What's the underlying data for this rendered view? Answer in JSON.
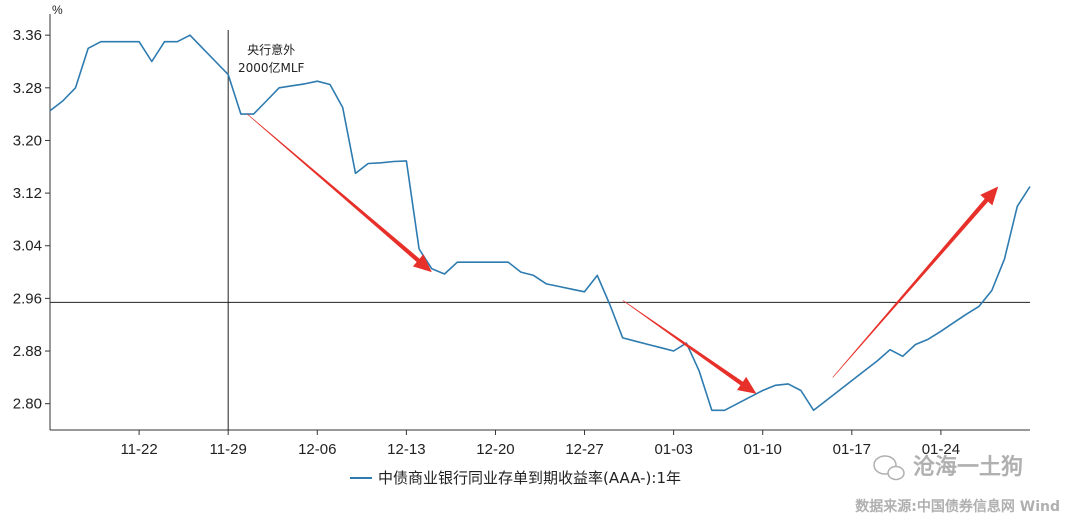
{
  "chart_data": {
    "type": "line",
    "unit_label": "%",
    "ylim": [
      2.76,
      3.38
    ],
    "yticks": [
      "3.36",
      "3.28",
      "3.20",
      "3.12",
      "3.04",
      "2.96",
      "2.88",
      "2.80"
    ],
    "ytick_values": [
      3.36,
      3.28,
      3.2,
      3.12,
      3.04,
      2.96,
      2.88,
      2.8
    ],
    "xticks": [
      "11-22",
      "11-29",
      "12-06",
      "12-13",
      "12-20",
      "12-27",
      "01-03",
      "01-10",
      "01-17",
      "01-24"
    ],
    "xtick_days": [
      7,
      14,
      21,
      28,
      35,
      42,
      49,
      56,
      63,
      70
    ],
    "x_start": "11-15",
    "series": [
      {
        "name": "中债商业银行同业存单到期收益率(AAA-):1年",
        "color": "#2e7bb0",
        "points": [
          [
            0,
            3.245
          ],
          [
            1,
            3.26
          ],
          [
            2,
            3.28
          ],
          [
            3,
            3.34
          ],
          [
            4,
            3.35
          ],
          [
            5,
            3.35
          ],
          [
            6,
            3.35
          ],
          [
            7,
            3.35
          ],
          [
            8,
            3.32
          ],
          [
            9,
            3.35
          ],
          [
            10,
            3.35
          ],
          [
            11,
            3.36
          ],
          [
            12,
            3.34
          ],
          [
            13,
            3.32
          ],
          [
            14,
            3.3
          ],
          [
            15,
            3.24
          ],
          [
            16,
            3.24
          ],
          [
            17,
            3.26
          ],
          [
            18,
            3.28
          ],
          [
            19,
            3.283
          ],
          [
            20,
            3.286
          ],
          [
            21,
            3.29
          ],
          [
            22,
            3.285
          ],
          [
            23,
            3.25
          ],
          [
            24,
            3.15
          ],
          [
            25,
            3.165
          ],
          [
            26,
            3.166
          ],
          [
            27,
            3.168
          ],
          [
            28,
            3.169
          ],
          [
            29,
            3.035
          ],
          [
            30,
            3.005
          ],
          [
            31,
            2.997
          ],
          [
            32,
            3.015
          ],
          [
            33,
            3.015
          ],
          [
            34,
            3.015
          ],
          [
            35,
            3.015
          ],
          [
            36,
            3.015
          ],
          [
            37,
            3.0
          ],
          [
            38,
            2.995
          ],
          [
            39,
            2.982
          ],
          [
            40,
            2.978
          ],
          [
            41,
            2.974
          ],
          [
            42,
            2.97
          ],
          [
            43,
            2.995
          ],
          [
            44,
            2.95
          ],
          [
            45,
            2.9
          ],
          [
            46,
            2.895
          ],
          [
            47,
            2.89
          ],
          [
            48,
            2.885
          ],
          [
            49,
            2.88
          ],
          [
            50,
            2.892
          ],
          [
            51,
            2.85
          ],
          [
            52,
            2.79
          ],
          [
            53,
            2.79
          ],
          [
            54,
            2.8
          ],
          [
            55,
            2.81
          ],
          [
            56,
            2.82
          ],
          [
            57,
            2.828
          ],
          [
            58,
            2.83
          ],
          [
            59,
            2.82
          ],
          [
            60,
            2.79
          ],
          [
            61,
            2.805
          ],
          [
            62,
            2.82
          ],
          [
            63,
            2.835
          ],
          [
            64,
            2.85
          ],
          [
            65,
            2.865
          ],
          [
            66,
            2.882
          ],
          [
            67,
            2.872
          ],
          [
            68,
            2.89
          ],
          [
            69,
            2.898
          ],
          [
            70,
            2.91
          ],
          [
            71,
            2.923
          ],
          [
            72,
            2.936
          ],
          [
            73,
            2.948
          ],
          [
            74,
            2.972
          ],
          [
            75,
            3.02
          ],
          [
            76,
            3.1
          ],
          [
            77,
            3.13
          ]
        ]
      }
    ],
    "hline": 2.954,
    "vline_day": 14,
    "annotation": {
      "line1": "央行意外",
      "line2": "2000亿MLF",
      "day": 14
    },
    "arrows": [
      {
        "from": [
          15.5,
          3.24
        ],
        "to": [
          30,
          3.0
        ],
        "color": "#e8302a"
      },
      {
        "from": [
          45,
          2.957
        ],
        "to": [
          55.5,
          2.815
        ],
        "color": "#e8302a"
      },
      {
        "from": [
          61.5,
          2.84
        ],
        "to": [
          74.5,
          3.13
        ],
        "color": "#e8302a"
      }
    ]
  },
  "watermark": {
    "brand": "沧海一土狗",
    "source": "数据来源:中国债券信息网 Wind"
  },
  "colors": {
    "series": "#2e7bb0",
    "arrow": "#e8302a",
    "axis": "#333333"
  }
}
